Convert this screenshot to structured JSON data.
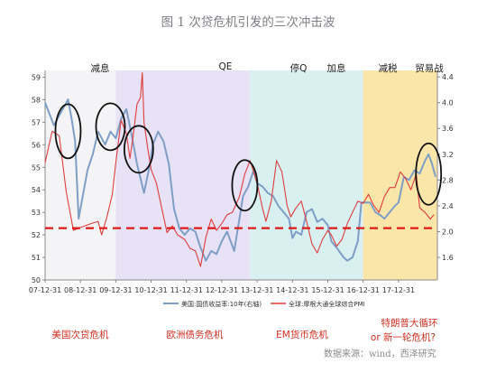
{
  "title": "图 1 次贷危机引发的三次冲击波",
  "phases": [
    "减息",
    "QE",
    "停Q",
    "加息",
    "减税",
    "贸易战"
  ],
  "crises": [
    "美国次贷危机",
    "欧洲债务危机",
    "EM货币危机",
    "特朗普大循环",
    "or 新一轮危机?"
  ],
  "source_note": "数据来源：wind，西泽研究",
  "colors": {
    "pmi": "#e03c3c",
    "yield": "#7e9ec6",
    "threshold": "#e01818",
    "circle": "#111111"
  },
  "chart_data": {
    "type": "line",
    "x_tick_labels": [
      "07-12-31",
      "08-12-31",
      "09-12-31",
      "10-12-31",
      "11-12-31",
      "12-12-31",
      "13-12-31",
      "14-12-31",
      "15-12-31",
      "16-12-31",
      "17-12-31"
    ],
    "x_range": [
      2008.0,
      2019.1
    ],
    "left_axis": {
      "ticks": [
        50,
        51,
        52,
        53,
        54,
        55,
        56,
        57,
        58,
        59
      ],
      "range": [
        50,
        59.3
      ]
    },
    "right_axis": {
      "ticks": [
        1.6,
        2.0,
        2.4,
        2.8,
        3.2,
        3.6,
        4.0,
        4.4
      ],
      "range": [
        1.25,
        4.5
      ]
    },
    "threshold_line": {
      "value": 52.3,
      "style": "dashed"
    },
    "shaded_regions": [
      {
        "from": 2008.0,
        "to": 2010.0,
        "color": "#f4f4f7"
      },
      {
        "from": 2010.0,
        "to": 2013.8,
        "color": "#e7e2f6"
      },
      {
        "from": 2013.8,
        "to": 2017.0,
        "color": "#d9f0f1"
      },
      {
        "from": 2017.0,
        "to": 2019.1,
        "color": "#fbe6aa"
      }
    ],
    "series": [
      {
        "name": "美国:国债收益率:10年(右轴)",
        "axis": "right",
        "points": [
          [
            2008.0,
            4.0
          ],
          [
            2008.25,
            3.65
          ],
          [
            2008.5,
            3.9
          ],
          [
            2008.65,
            4.05
          ],
          [
            2008.75,
            3.75
          ],
          [
            2008.85,
            3.4
          ],
          [
            2008.95,
            2.2
          ],
          [
            2009.05,
            2.5
          ],
          [
            2009.2,
            2.95
          ],
          [
            2009.35,
            3.2
          ],
          [
            2009.5,
            3.55
          ],
          [
            2009.7,
            3.35
          ],
          [
            2009.85,
            3.55
          ],
          [
            2010.0,
            3.45
          ],
          [
            2010.15,
            3.75
          ],
          [
            2010.3,
            3.9
          ],
          [
            2010.45,
            3.5
          ],
          [
            2010.6,
            3.05
          ],
          [
            2010.8,
            2.6
          ],
          [
            2010.95,
            3.0
          ],
          [
            2011.05,
            3.35
          ],
          [
            2011.2,
            3.55
          ],
          [
            2011.35,
            3.4
          ],
          [
            2011.5,
            3.05
          ],
          [
            2011.65,
            2.35
          ],
          [
            2011.8,
            2.05
          ],
          [
            2011.95,
            1.95
          ],
          [
            2012.1,
            2.05
          ],
          [
            2012.25,
            2.0
          ],
          [
            2012.4,
            1.75
          ],
          [
            2012.55,
            1.55
          ],
          [
            2012.7,
            1.7
          ],
          [
            2012.85,
            1.65
          ],
          [
            2013.0,
            1.85
          ],
          [
            2013.15,
            2.0
          ],
          [
            2013.35,
            1.7
          ],
          [
            2013.5,
            2.2
          ],
          [
            2013.6,
            2.55
          ],
          [
            2013.75,
            2.7
          ],
          [
            2013.9,
            2.95
          ],
          [
            2014.0,
            2.75
          ],
          [
            2014.15,
            2.7
          ],
          [
            2014.3,
            2.6
          ],
          [
            2014.45,
            2.55
          ],
          [
            2014.6,
            2.4
          ],
          [
            2014.75,
            2.3
          ],
          [
            2014.9,
            2.2
          ],
          [
            2015.0,
            1.9
          ],
          [
            2015.1,
            2.0
          ],
          [
            2015.25,
            1.95
          ],
          [
            2015.4,
            2.3
          ],
          [
            2015.55,
            2.35
          ],
          [
            2015.7,
            2.15
          ],
          [
            2015.85,
            2.2
          ],
          [
            2016.0,
            2.1
          ],
          [
            2016.1,
            1.85
          ],
          [
            2016.25,
            1.75
          ],
          [
            2016.45,
            1.6
          ],
          [
            2016.55,
            1.55
          ],
          [
            2016.7,
            1.6
          ],
          [
            2016.85,
            1.85
          ],
          [
            2016.95,
            2.45
          ],
          [
            2017.05,
            2.45
          ],
          [
            2017.2,
            2.45
          ],
          [
            2017.35,
            2.3
          ],
          [
            2017.5,
            2.25
          ],
          [
            2017.6,
            2.2
          ],
          [
            2017.75,
            2.3
          ],
          [
            2017.9,
            2.4
          ],
          [
            2018.0,
            2.45
          ],
          [
            2018.15,
            2.85
          ],
          [
            2018.3,
            2.8
          ],
          [
            2018.45,
            2.95
          ],
          [
            2018.6,
            2.9
          ],
          [
            2018.75,
            3.1
          ],
          [
            2018.85,
            3.2
          ],
          [
            2018.95,
            3.05
          ],
          [
            2019.05,
            2.85
          ]
        ]
      },
      {
        "name": "全球:摩根大通全球综合PMI",
        "axis": "left",
        "points": [
          [
            2008.0,
            55.2
          ],
          [
            2008.2,
            56.6
          ],
          [
            2008.4,
            56.4
          ],
          [
            2008.6,
            53.9
          ],
          [
            2008.8,
            52.2
          ],
          [
            2008.95,
            52.3
          ],
          [
            2009.3,
            52.5
          ],
          [
            2009.5,
            52.6
          ],
          [
            2009.6,
            52.0
          ],
          [
            2009.75,
            52.8
          ],
          [
            2009.9,
            53.8
          ],
          [
            2010.0,
            55.2
          ],
          [
            2010.15,
            57.1
          ],
          [
            2010.3,
            56.5
          ],
          [
            2010.4,
            55.4
          ],
          [
            2010.5,
            56.5
          ],
          [
            2010.6,
            57.8
          ],
          [
            2010.7,
            58.1
          ],
          [
            2010.75,
            59.2
          ],
          [
            2010.8,
            57.0
          ],
          [
            2010.9,
            55.9
          ],
          [
            2011.0,
            54.9
          ],
          [
            2011.15,
            54.3
          ],
          [
            2011.3,
            53.2
          ],
          [
            2011.45,
            52.1
          ],
          [
            2011.6,
            52.4
          ],
          [
            2011.75,
            52.0
          ],
          [
            2011.95,
            51.8
          ],
          [
            2012.1,
            51.4
          ],
          [
            2012.25,
            51.3
          ],
          [
            2012.4,
            50.6
          ],
          [
            2012.55,
            51.9
          ],
          [
            2012.7,
            52.7
          ],
          [
            2012.85,
            52.2
          ],
          [
            2013.0,
            52.5
          ],
          [
            2013.15,
            52.9
          ],
          [
            2013.3,
            53.0
          ],
          [
            2013.5,
            53.7
          ],
          [
            2013.65,
            54.7
          ],
          [
            2013.8,
            55.3
          ],
          [
            2013.9,
            54.8
          ],
          [
            2014.0,
            54.3
          ],
          [
            2014.15,
            53.2
          ],
          [
            2014.25,
            52.6
          ],
          [
            2014.4,
            53.5
          ],
          [
            2014.55,
            55.3
          ],
          [
            2014.7,
            54.8
          ],
          [
            2014.85,
            53.3
          ],
          [
            2014.95,
            52.8
          ],
          [
            2015.1,
            53.2
          ],
          [
            2015.25,
            53.5
          ],
          [
            2015.4,
            52.6
          ],
          [
            2015.55,
            51.6
          ],
          [
            2015.7,
            51.2
          ],
          [
            2015.85,
            51.8
          ],
          [
            2016.0,
            52.2
          ],
          [
            2016.1,
            52.0
          ],
          [
            2016.25,
            51.5
          ],
          [
            2016.4,
            51.8
          ],
          [
            2016.55,
            52.5
          ],
          [
            2016.7,
            53.0
          ],
          [
            2016.85,
            53.5
          ],
          [
            2017.0,
            53.4
          ],
          [
            2017.15,
            53.8
          ],
          [
            2017.3,
            53.3
          ],
          [
            2017.45,
            53.0
          ],
          [
            2017.6,
            53.7
          ],
          [
            2017.75,
            54.1
          ],
          [
            2017.9,
            54.1
          ],
          [
            2018.05,
            54.8
          ],
          [
            2018.2,
            54.5
          ],
          [
            2018.35,
            54.0
          ],
          [
            2018.5,
            54.7
          ],
          [
            2018.6,
            53.2
          ],
          [
            2018.75,
            53.0
          ],
          [
            2018.9,
            52.7
          ],
          [
            2019.0,
            52.9
          ]
        ]
      }
    ]
  }
}
